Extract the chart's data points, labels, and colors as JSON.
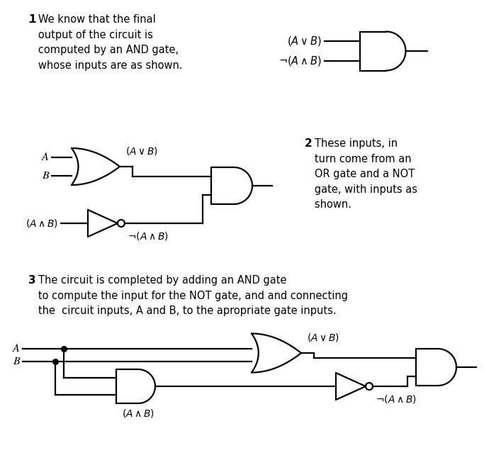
{
  "linewidth": 1.6,
  "fontsize": 10.5,
  "text1_bold": "1",
  "text1": ".  We know that the final\n   output of the circuit is\n   computed by an AND gate,\n   whose inputs are as shown.",
  "text2_bold": "2",
  "text2": ".  These inputs, in\n   turn come from an\n   OR gate and a NOT\n   gate, with inputs as\n   shown.",
  "text3_bold": "3",
  "text3": ".  The circuit is completed by adding an AND gate\n   to compute the input for the NOT gate, and and connecting\n   the  circuit inputs, A and B, to the apropriate gate inputs."
}
